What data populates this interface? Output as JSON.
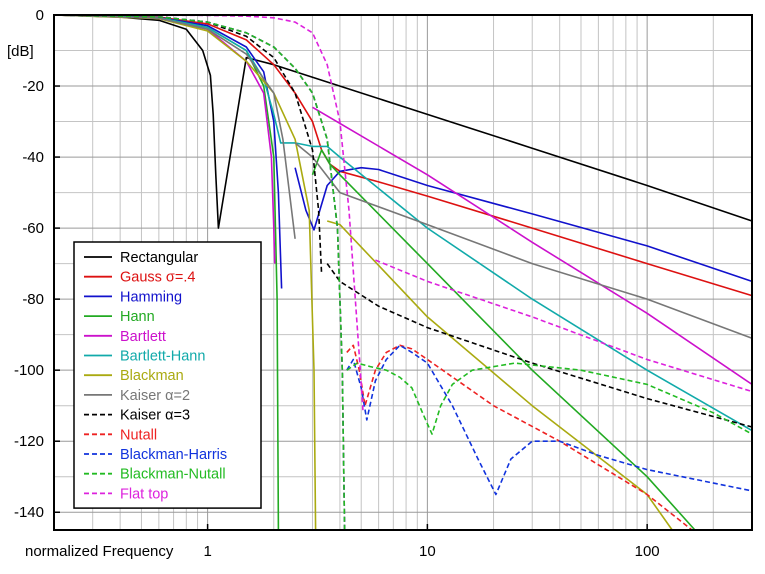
{
  "chart_data": {
    "type": "line",
    "xlabel": "normalized Frequency",
    "ylabel": "[dB]",
    "xscale": "log",
    "xlim": [
      0.2,
      300
    ],
    "ylim": [
      -145,
      0
    ],
    "grid": true,
    "legend_position": "bottom-left",
    "x_ticks": [
      1,
      10,
      100
    ],
    "y_ticks": [
      0,
      -20,
      -40,
      -60,
      -80,
      -100,
      -120,
      -140
    ],
    "series": [
      {
        "name": "Rectangular",
        "color": "#000000",
        "dash": "solid",
        "points": [
          [
            0.2,
            0
          ],
          [
            0.4,
            -0.6
          ],
          [
            0.6,
            -1.5
          ],
          [
            0.8,
            -4
          ],
          [
            0.95,
            -10
          ],
          [
            1.03,
            -17
          ],
          [
            1.06,
            -28
          ],
          [
            1.09,
            -45
          ],
          [
            1.12,
            -60
          ],
          [
            1.5,
            -12
          ],
          [
            2,
            -14
          ],
          [
            3,
            -17.5
          ],
          [
            10,
            -28
          ],
          [
            30,
            -37.5
          ],
          [
            100,
            -48
          ],
          [
            300,
            -58
          ]
        ]
      },
      {
        "name": "Gauss σ=.4",
        "color": "#dd1111",
        "dash": "solid",
        "points": [
          [
            0.2,
            0
          ],
          [
            0.6,
            -0.6
          ],
          [
            1,
            -2.5
          ],
          [
            1.5,
            -7
          ],
          [
            2,
            -14
          ],
          [
            2.5,
            -22
          ],
          [
            3,
            -30
          ],
          [
            3.3,
            -38
          ],
          [
            3.6,
            -42
          ],
          [
            4,
            -44
          ],
          [
            6,
            -47
          ],
          [
            10,
            -51
          ],
          [
            30,
            -60
          ],
          [
            100,
            -70
          ],
          [
            300,
            -79
          ]
        ]
      },
      {
        "name": "Hamming",
        "color": "#1111cc",
        "dash": "solid",
        "points": [
          [
            0.2,
            0
          ],
          [
            0.6,
            -0.7
          ],
          [
            1,
            -3
          ],
          [
            1.5,
            -9
          ],
          [
            1.8,
            -16
          ],
          [
            2,
            -30
          ],
          [
            2.1,
            -50
          ],
          [
            2.17,
            -77
          ],
          [
            null,
            null
          ],
          [
            2.5,
            -43
          ],
          [
            2.8,
            -55
          ],
          [
            3.05,
            -60.5
          ],
          [
            3.5,
            -48
          ],
          [
            4,
            -44
          ],
          [
            5,
            -43
          ],
          [
            6,
            -43.5
          ],
          [
            10,
            -48
          ],
          [
            30,
            -56
          ],
          [
            100,
            -65
          ],
          [
            300,
            -75
          ]
        ]
      },
      {
        "name": "Hann",
        "color": "#22aa22",
        "dash": "solid",
        "points": [
          [
            0.2,
            0
          ],
          [
            0.6,
            -0.8
          ],
          [
            1,
            -3.5
          ],
          [
            1.5,
            -10
          ],
          [
            1.8,
            -20
          ],
          [
            2,
            -40
          ],
          [
            2.07,
            -80
          ],
          [
            2.1,
            -145
          ],
          [
            null,
            null
          ],
          [
            3,
            -45
          ],
          [
            3.3,
            -38
          ],
          [
            3.6,
            -42
          ],
          [
            4,
            -45
          ],
          [
            10,
            -70
          ],
          [
            30,
            -100
          ],
          [
            100,
            -130
          ],
          [
            165,
            -145
          ]
        ]
      },
      {
        "name": "Bartlett",
        "color": "#cc11cc",
        "dash": "solid",
        "points": [
          [
            0.2,
            0
          ],
          [
            0.6,
            -0.9
          ],
          [
            1,
            -4
          ],
          [
            1.5,
            -13
          ],
          [
            1.8,
            -22
          ],
          [
            1.95,
            -40
          ],
          [
            2,
            -60
          ],
          [
            2.02,
            -70
          ],
          [
            null,
            null
          ],
          [
            3,
            -26
          ],
          [
            10,
            -45
          ],
          [
            30,
            -64
          ],
          [
            100,
            -84
          ],
          [
            300,
            -104
          ]
        ]
      },
      {
        "name": "Bartlett-Hann",
        "color": "#11aaaa",
        "dash": "solid",
        "points": [
          [
            0.2,
            0
          ],
          [
            0.6,
            -0.8
          ],
          [
            1,
            -3.5
          ],
          [
            1.5,
            -10
          ],
          [
            1.8,
            -18
          ],
          [
            2,
            -28
          ],
          [
            2.15,
            -36
          ],
          [
            2.5,
            -36
          ],
          [
            3,
            -37
          ],
          [
            3.5,
            -37
          ],
          [
            4,
            -40
          ],
          [
            10,
            -60
          ],
          [
            30,
            -80
          ],
          [
            100,
            -100
          ],
          [
            300,
            -117
          ]
        ]
      },
      {
        "name": "Blackman",
        "color": "#aaaa11",
        "dash": "solid",
        "points": [
          [
            0.2,
            0
          ],
          [
            0.6,
            -1
          ],
          [
            1,
            -4.5
          ],
          [
            1.5,
            -13
          ],
          [
            2,
            -22
          ],
          [
            2.5,
            -35
          ],
          [
            2.9,
            -55
          ],
          [
            3.05,
            -100
          ],
          [
            3.1,
            -145
          ],
          [
            null,
            null
          ],
          [
            3.5,
            -58
          ],
          [
            4,
            -59
          ],
          [
            10,
            -85
          ],
          [
            30,
            -110
          ],
          [
            100,
            -135
          ],
          [
            130,
            -145
          ]
        ]
      },
      {
        "name": "Kaiser α=2",
        "color": "#777777",
        "dash": "solid",
        "points": [
          [
            0.2,
            0
          ],
          [
            0.6,
            -0.9
          ],
          [
            1,
            -4
          ],
          [
            1.5,
            -11
          ],
          [
            2,
            -22
          ],
          [
            2.2,
            -35
          ],
          [
            2.5,
            -63
          ],
          [
            null,
            null
          ],
          [
            2.5,
            -36
          ],
          [
            3,
            -40
          ],
          [
            4,
            -50
          ],
          [
            10,
            -59
          ],
          [
            30,
            -70
          ],
          [
            100,
            -80
          ],
          [
            300,
            -91
          ]
        ]
      },
      {
        "name": "Kaiser α=3",
        "color": "#000000",
        "dash": "dashed",
        "points": [
          [
            0.2,
            0
          ],
          [
            0.6,
            -0.5
          ],
          [
            1,
            -2
          ],
          [
            1.5,
            -6
          ],
          [
            2,
            -12
          ],
          [
            2.5,
            -22
          ],
          [
            3,
            -38
          ],
          [
            3.2,
            -55
          ],
          [
            3.3,
            -73
          ],
          [
            null,
            null
          ],
          [
            3.5,
            -70
          ],
          [
            4,
            -75
          ],
          [
            6,
            -82
          ],
          [
            10,
            -88
          ],
          [
            30,
            -98
          ],
          [
            100,
            -108
          ],
          [
            300,
            -116
          ]
        ]
      },
      {
        "name": "Nutall",
        "color": "#ee2222",
        "dash": "dashed",
        "points": [
          [
            0.2,
            0
          ],
          [
            0.6,
            -0.5
          ],
          [
            1,
            -2
          ],
          [
            1.5,
            -5
          ],
          [
            2,
            -9
          ],
          [
            2.5,
            -15
          ],
          [
            3,
            -22
          ],
          [
            3.5,
            -35
          ],
          [
            3.9,
            -60
          ],
          [
            4.1,
            -100
          ],
          [
            4.2,
            -145
          ],
          [
            null,
            null
          ],
          [
            4.3,
            -95
          ],
          [
            4.6,
            -93
          ],
          [
            4.9,
            -100
          ],
          [
            5.2,
            -110
          ],
          [
            5.8,
            -100
          ],
          [
            6.5,
            -95
          ],
          [
            7.5,
            -93
          ],
          [
            8.5,
            -94
          ],
          [
            10,
            -97
          ],
          [
            20,
            -110
          ],
          [
            40,
            -120
          ],
          [
            100,
            -135
          ],
          [
            160,
            -145
          ]
        ]
      },
      {
        "name": "Blackman-Harris",
        "color": "#1133dd",
        "dash": "dashed",
        "points": [
          [
            0.2,
            0
          ],
          [
            0.6,
            -0.5
          ],
          [
            1,
            -2
          ],
          [
            1.5,
            -5
          ],
          [
            2,
            -9
          ],
          [
            2.5,
            -15
          ],
          [
            3,
            -22
          ],
          [
            3.5,
            -35
          ],
          [
            3.9,
            -60
          ],
          [
            4.1,
            -100
          ],
          [
            4.2,
            -145
          ],
          [
            null,
            null
          ],
          [
            4.3,
            -100
          ],
          [
            4.6,
            -97
          ],
          [
            5,
            -105
          ],
          [
            5.3,
            -114
          ],
          [
            5.8,
            -103
          ],
          [
            6.5,
            -97
          ],
          [
            7.5,
            -93
          ],
          [
            8.5,
            -95
          ],
          [
            10,
            -98
          ],
          [
            13,
            -110
          ],
          [
            17,
            -125
          ],
          [
            20.5,
            -135
          ],
          [
            24,
            -125
          ],
          [
            30,
            -120
          ],
          [
            40,
            -120
          ],
          [
            60,
            -124
          ],
          [
            100,
            -128
          ],
          [
            300,
            -134
          ]
        ]
      },
      {
        "name": "Blackman-Nutall",
        "color": "#22bb22",
        "dash": "dashed",
        "points": [
          [
            0.2,
            0
          ],
          [
            0.6,
            -0.5
          ],
          [
            1,
            -2
          ],
          [
            1.5,
            -5
          ],
          [
            2,
            -9
          ],
          [
            2.5,
            -15
          ],
          [
            3,
            -22
          ],
          [
            3.5,
            -35
          ],
          [
            3.9,
            -60
          ],
          [
            4.1,
            -100
          ],
          [
            4.2,
            -145
          ],
          [
            null,
            null
          ],
          [
            4.3,
            -100
          ],
          [
            4.8,
            -98
          ],
          [
            5.5,
            -99
          ],
          [
            6.5,
            -100
          ],
          [
            7.5,
            -102
          ],
          [
            8.5,
            -105
          ],
          [
            9.5,
            -112
          ],
          [
            10.5,
            -118
          ],
          [
            11.5,
            -110
          ],
          [
            13,
            -104
          ],
          [
            16,
            -100
          ],
          [
            25,
            -98
          ],
          [
            50,
            -100
          ],
          [
            100,
            -104
          ],
          [
            200,
            -112
          ],
          [
            300,
            -118
          ]
        ]
      },
      {
        "name": "Flat top",
        "color": "#dd22dd",
        "dash": "dashed",
        "points": [
          [
            0.2,
            0
          ],
          [
            1,
            -0.1
          ],
          [
            1.5,
            -0.3
          ],
          [
            2,
            -0.8
          ],
          [
            2.5,
            -2
          ],
          [
            3,
            -5
          ],
          [
            3.5,
            -14
          ],
          [
            4,
            -30
          ],
          [
            4.4,
            -55
          ],
          [
            4.7,
            -80
          ],
          [
            4.95,
            -100
          ],
          [
            5.1,
            -112
          ],
          [
            null,
            null
          ],
          [
            5.8,
            -69
          ],
          [
            10,
            -75
          ],
          [
            30,
            -85
          ],
          [
            100,
            -97
          ],
          [
            300,
            -106
          ]
        ]
      }
    ]
  }
}
